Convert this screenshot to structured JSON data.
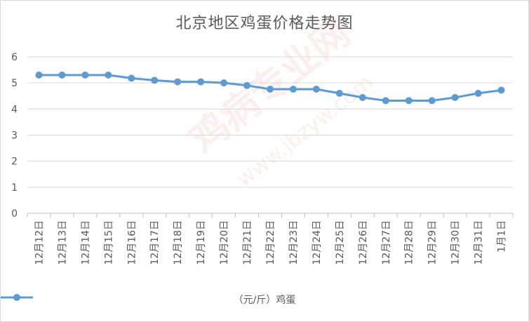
{
  "chart_data": {
    "type": "line",
    "title": "北京地区鸡蛋价格走势图",
    "categories": [
      "12月12日",
      "12月13日",
      "12月14日",
      "12月15日",
      "12月16日",
      "12月17日",
      "12月18日",
      "12月19日",
      "12月20日",
      "12月21日",
      "12月22日",
      "12月23日",
      "12月24日",
      "12月25日",
      "12月26日",
      "12月27日",
      "12月28日",
      "12月29日",
      "12月30日",
      "12月31日",
      "1月1日"
    ],
    "series": [
      {
        "name": "（元/斤）鸡蛋",
        "values": [
          5.3,
          5.3,
          5.3,
          5.3,
          5.18,
          5.1,
          5.04,
          5.04,
          5.0,
          4.9,
          4.76,
          4.76,
          4.76,
          4.6,
          4.44,
          4.32,
          4.32,
          4.32,
          4.44,
          4.6,
          4.72
        ],
        "color": "#5b9bd5"
      }
    ],
    "ylim": [
      0,
      6
    ],
    "yticks": [
      "0",
      "1",
      "2",
      "3",
      "4",
      "5",
      "6"
    ],
    "grid": true,
    "legend_position": "bottom"
  },
  "watermark": {
    "text": "鸡病专业网",
    "url": "www.jbzyw.com"
  }
}
